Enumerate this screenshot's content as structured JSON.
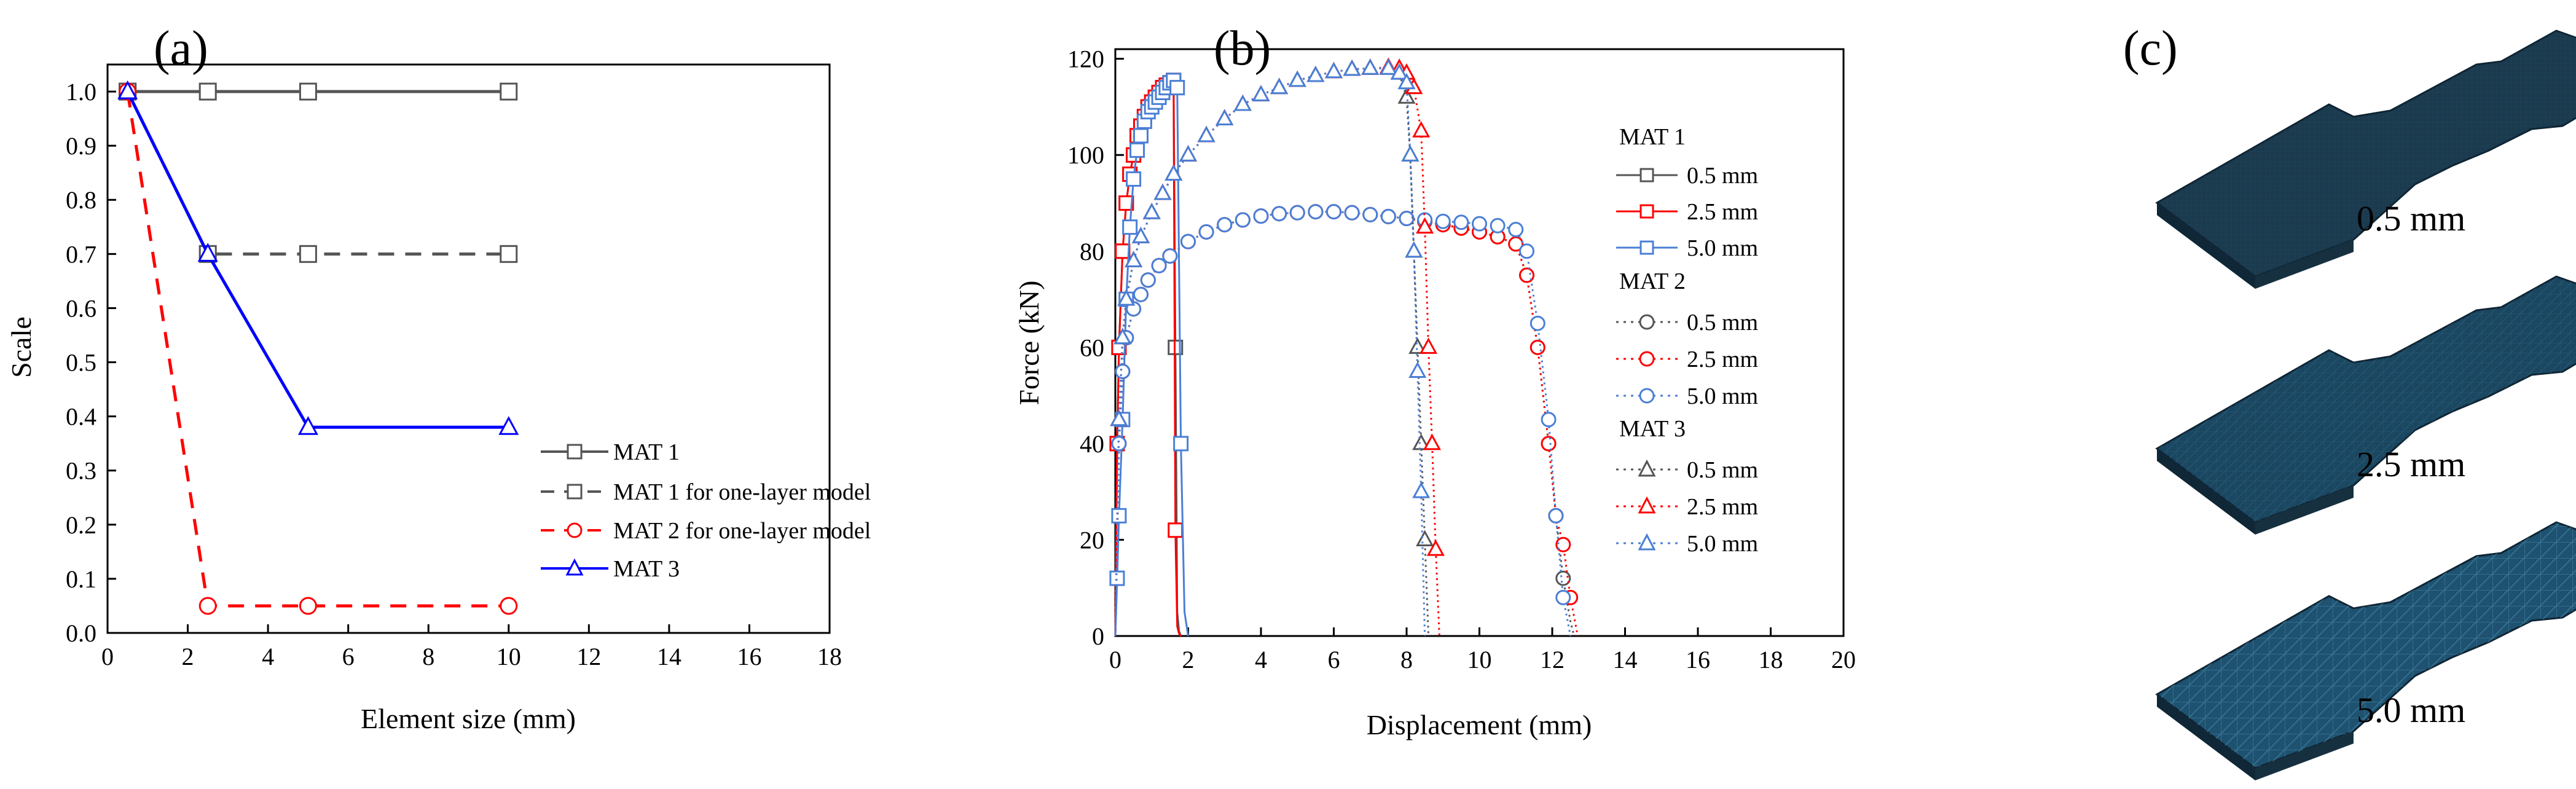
{
  "chart_data": [
    {
      "panel": "(a)",
      "type": "line",
      "xlabel": "Element size (mm)",
      "ylabel": "Scale",
      "xlim": [
        0,
        18
      ],
      "ylim": [
        0,
        1.05
      ],
      "xticks": [
        0,
        2,
        4,
        6,
        8,
        10,
        12,
        14,
        16,
        18
      ],
      "yticks": [
        "0.0",
        "0.1",
        "0.2",
        "0.3",
        "0.4",
        "0.5",
        "0.6",
        "0.7",
        "0.8",
        "0.9",
        "1.0"
      ],
      "legend_position": "bottom-right",
      "series": [
        {
          "name": "MAT 1",
          "x": [
            0.5,
            2.5,
            5,
            10
          ],
          "values": [
            1.0,
            1.0,
            1.0,
            1.0
          ],
          "color": "#555555",
          "dash": "solid",
          "marker": "square"
        },
        {
          "name": "MAT 1 for one-layer model",
          "x": [
            0.5,
            2.5,
            5,
            10
          ],
          "values": [
            1.0,
            0.7,
            0.7,
            0.7
          ],
          "color": "#555555",
          "dash": "dashed",
          "marker": "square"
        },
        {
          "name": "MAT 2 for one-layer model",
          "x": [
            0.5,
            2.5,
            5,
            10
          ],
          "values": [
            1.0,
            0.05,
            0.05,
            0.05
          ],
          "color": "#ff0000",
          "dash": "dashed",
          "marker": "circle"
        },
        {
          "name": "MAT 3",
          "x": [
            0.5,
            2.5,
            5,
            10
          ],
          "values": [
            1.0,
            0.7,
            0.38,
            0.38
          ],
          "color": "#0000ff",
          "dash": "solid",
          "marker": "triangle"
        }
      ]
    },
    {
      "panel": "(b)",
      "type": "line",
      "xlabel": "Displacement (mm)",
      "ylabel": "Force (kN)",
      "xlim": [
        0,
        20
      ],
      "ylim": [
        0,
        122
      ],
      "xticks": [
        0,
        2,
        4,
        6,
        8,
        10,
        12,
        14,
        16,
        18,
        20
      ],
      "yticks": [
        0,
        20,
        40,
        60,
        80,
        100,
        120
      ],
      "legend_position": "right",
      "legend_groups": [
        {
          "title": "MAT 1",
          "entries": [
            "0.5 mm",
            "2.5 mm",
            "5.0 mm"
          ]
        },
        {
          "title": "MAT 2",
          "entries": [
            "0.5 mm",
            "2.5 mm",
            "5.0 mm"
          ]
        },
        {
          "title": "MAT 3",
          "entries": [
            "0.5 mm",
            "2.5 mm",
            "5.0 mm"
          ]
        }
      ],
      "series": [
        {
          "name": "MAT 1 0.5 mm",
          "color": "#555555",
          "dash": "solid",
          "marker": "square",
          "x": [
            0,
            0.05,
            0.1,
            0.2,
            0.3,
            0.4,
            0.5,
            0.6,
            0.7,
            0.8,
            0.9,
            1.0,
            1.1,
            1.2,
            1.3,
            1.4,
            1.5,
            1.6,
            1.65,
            1.7,
            1.75,
            1.8
          ],
          "values": [
            0,
            40,
            60,
            80,
            90,
            96,
            100,
            104,
            106,
            108,
            110,
            111,
            112,
            113,
            114,
            114.5,
            115,
            115.5,
            60,
            5,
            1,
            0
          ]
        },
        {
          "name": "MAT 1 2.5 mm",
          "color": "#ff0000",
          "dash": "solid",
          "marker": "square",
          "x": [
            0,
            0.05,
            0.1,
            0.2,
            0.3,
            0.4,
            0.5,
            0.6,
            0.7,
            0.8,
            0.9,
            1.0,
            1.1,
            1.2,
            1.3,
            1.4,
            1.5,
            1.6,
            1.65,
            1.7,
            1.75,
            1.8
          ],
          "values": [
            0,
            40,
            60,
            80,
            90,
            96,
            100,
            104,
            106,
            108,
            110,
            111,
            112,
            113,
            114,
            114.5,
            115,
            115.5,
            22,
            2,
            0.5,
            0
          ]
        },
        {
          "name": "MAT 1 5.0 mm",
          "color": "#4a7fd6",
          "dash": "solid",
          "marker": "square",
          "x": [
            0,
            0.05,
            0.1,
            0.2,
            0.3,
            0.4,
            0.5,
            0.6,
            0.7,
            0.8,
            0.9,
            1.0,
            1.1,
            1.2,
            1.3,
            1.4,
            1.5,
            1.6,
            1.7,
            1.8,
            1.9,
            2.0
          ],
          "values": [
            0,
            12,
            25,
            45,
            70,
            85,
            95,
            101,
            104,
            107,
            109,
            110,
            111,
            112,
            113,
            114,
            115,
            115.5,
            114,
            40,
            5,
            0
          ]
        },
        {
          "name": "MAT 2 0.5 mm",
          "color": "#555555",
          "dash": "dotted",
          "marker": "circle",
          "x": [
            0,
            0.1,
            0.2,
            0.3,
            0.5,
            0.7,
            0.9,
            1.2,
            1.5,
            2.0,
            2.5,
            3.0,
            3.5,
            4.0,
            4.5,
            5.0,
            5.5,
            6.0,
            6.5,
            7.0,
            7.5,
            8.0,
            8.5,
            9.0,
            9.5,
            10.0,
            10.5,
            11.0,
            11.3,
            11.6,
            11.9,
            12.1,
            12.3,
            12.5,
            12.6
          ],
          "values": [
            0,
            40,
            55,
            62,
            68,
            71,
            74,
            77,
            79,
            82,
            84,
            85.5,
            86.5,
            87.3,
            87.8,
            88,
            88.2,
            88.2,
            88,
            87.6,
            87.2,
            86.8,
            86.2,
            85.5,
            84.8,
            84,
            83,
            81.5,
            75,
            60,
            40,
            25,
            12,
            3,
            0
          ]
        },
        {
          "name": "MAT 2 2.5 mm",
          "color": "#ff0000",
          "dash": "dotted",
          "marker": "circle",
          "x": [
            0,
            0.1,
            0.2,
            0.3,
            0.5,
            0.7,
            0.9,
            1.2,
            1.5,
            2.0,
            2.5,
            3.0,
            3.5,
            4.0,
            4.5,
            5.0,
            5.5,
            6.0,
            6.5,
            7.0,
            7.5,
            8.0,
            8.5,
            9.0,
            9.5,
            10.0,
            10.5,
            11.0,
            11.3,
            11.6,
            11.9,
            12.1,
            12.3,
            12.5,
            12.7
          ],
          "values": [
            0,
            40,
            55,
            62,
            68,
            71,
            74,
            77,
            79,
            82,
            84,
            85.5,
            86.5,
            87.3,
            87.8,
            88,
            88.2,
            88.2,
            88,
            87.6,
            87.2,
            86.8,
            86.2,
            85.5,
            84.8,
            84,
            83,
            81.5,
            75,
            60,
            40,
            25,
            19,
            8,
            0
          ]
        },
        {
          "name": "MAT 2 5.0 mm",
          "color": "#4a7fd6",
          "dash": "dotted",
          "marker": "circle",
          "x": [
            0,
            0.1,
            0.2,
            0.3,
            0.5,
            0.7,
            0.9,
            1.2,
            1.5,
            2.0,
            2.5,
            3.0,
            3.5,
            4.0,
            4.5,
            5.0,
            5.5,
            6.0,
            6.5,
            7.0,
            7.5,
            8.0,
            8.5,
            9.0,
            9.5,
            10.0,
            10.5,
            11.0,
            11.3,
            11.6,
            11.9,
            12.1,
            12.3,
            12.5
          ],
          "values": [
            0,
            40,
            55,
            62,
            68,
            71,
            74,
            77,
            79,
            82,
            84,
            85.5,
            86.5,
            87.3,
            87.8,
            88,
            88.2,
            88.2,
            88,
            87.6,
            87.2,
            86.8,
            86.5,
            86.2,
            86,
            85.7,
            85.3,
            84.5,
            80,
            65,
            45,
            25,
            8,
            0
          ]
        },
        {
          "name": "MAT 3 0.5 mm",
          "color": "#555555",
          "dash": "dotted",
          "marker": "triangle",
          "x": [
            0,
            0.1,
            0.2,
            0.3,
            0.5,
            0.7,
            1.0,
            1.3,
            1.6,
            2.0,
            2.5,
            3.0,
            3.5,
            4.0,
            4.5,
            5.0,
            5.5,
            6.0,
            6.5,
            7.0,
            7.5,
            7.8,
            8.0,
            8.1,
            8.2,
            8.3,
            8.4,
            8.5,
            8.6
          ],
          "values": [
            0,
            45,
            62,
            70,
            78,
            83,
            88,
            92,
            96,
            100,
            104,
            107.5,
            110.5,
            112.5,
            114,
            115.5,
            116.5,
            117.3,
            117.8,
            118,
            118,
            117,
            112,
            100,
            80,
            60,
            40,
            20,
            0
          ]
        },
        {
          "name": "MAT 3 2.5 mm",
          "color": "#ff0000",
          "dash": "dotted",
          "marker": "triangle",
          "x": [
            0,
            0.1,
            0.2,
            0.3,
            0.5,
            0.7,
            1.0,
            1.3,
            1.6,
            2.0,
            2.5,
            3.0,
            3.5,
            4.0,
            4.5,
            5.0,
            5.5,
            6.0,
            6.5,
            7.0,
            7.5,
            7.8,
            8.0,
            8.2,
            8.4,
            8.5,
            8.6,
            8.7,
            8.8,
            8.9
          ],
          "values": [
            0,
            45,
            62,
            70,
            78,
            83,
            88,
            92,
            96,
            100,
            104,
            107.5,
            110.5,
            112.5,
            114,
            115.5,
            116.5,
            117.3,
            117.8,
            118,
            118.2,
            118,
            117,
            114,
            105,
            85,
            60,
            40,
            18,
            0
          ]
        },
        {
          "name": "MAT 3 5.0 mm",
          "color": "#4a7fd6",
          "dash": "dotted",
          "marker": "triangle",
          "x": [
            0,
            0.1,
            0.2,
            0.3,
            0.5,
            0.7,
            1.0,
            1.3,
            1.6,
            2.0,
            2.5,
            3.0,
            3.5,
            4.0,
            4.5,
            5.0,
            5.5,
            6.0,
            6.5,
            7.0,
            7.5,
            7.8,
            8.0,
            8.1,
            8.2,
            8.3,
            8.4,
            8.5
          ],
          "values": [
            0,
            45,
            62,
            70,
            78,
            83,
            88,
            92,
            96,
            100,
            104,
            107.5,
            110.5,
            112.5,
            114,
            115.5,
            116.5,
            117.3,
            117.8,
            118,
            118,
            117,
            115,
            100,
            80,
            55,
            30,
            0
          ]
        }
      ]
    }
  ],
  "panel_c": {
    "panel": "(c)",
    "meshes": [
      {
        "label": "0.5 mm",
        "color": "#1b3a4e"
      },
      {
        "label": "2.5 mm",
        "color": "#1b4660"
      },
      {
        "label": "5.0 mm",
        "color": "#1e5270"
      }
    ]
  }
}
